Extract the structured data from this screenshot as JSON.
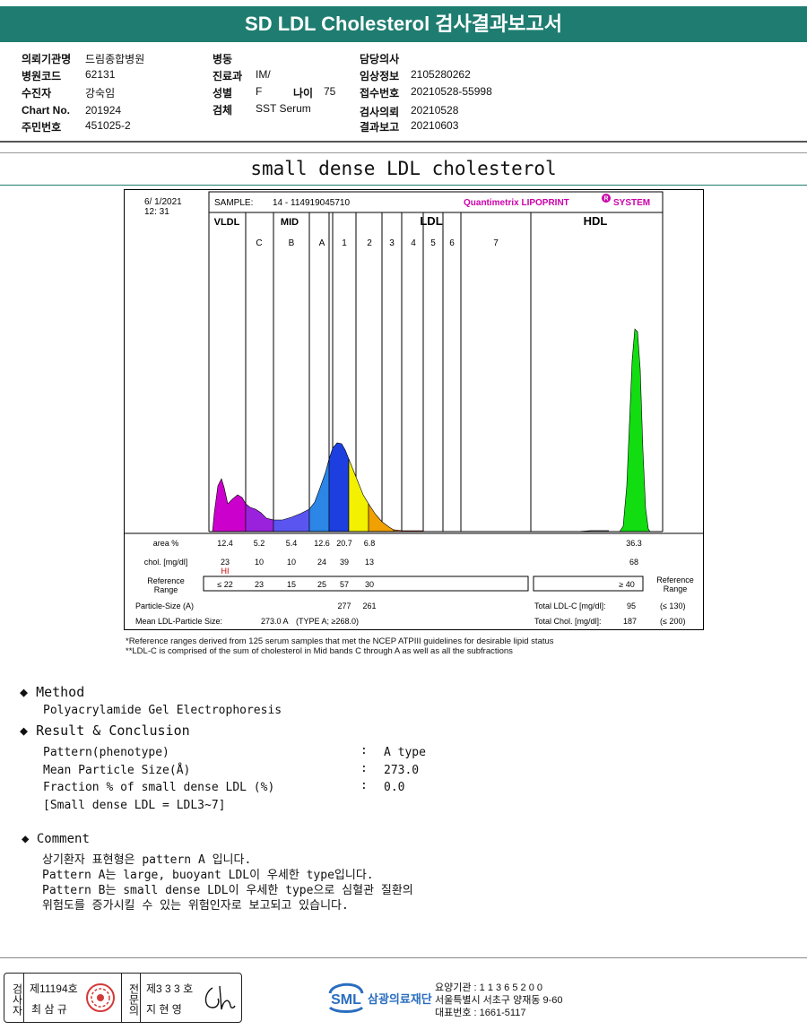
{
  "report_title": "SD LDL Cholesterol 검사결과보고서",
  "header": {
    "col1": [
      {
        "label": "의뢰기관명",
        "value": "드림종합병원"
      },
      {
        "label": "병원코드",
        "value": "62131"
      },
      {
        "label": "수진자",
        "value": "강숙임"
      },
      {
        "label": "Chart No.",
        "value": "201924"
      },
      {
        "label": "주민번호",
        "value": "451025-2"
      }
    ],
    "col2": [
      {
        "label": "병동",
        "value": ""
      },
      {
        "label": "진료과",
        "value": "IM/"
      },
      {
        "label": "성별",
        "value": "F"
      },
      {
        "label": "검체",
        "value": "SST Serum"
      }
    ],
    "age_label": "나이",
    "age_value": "75",
    "col3": [
      {
        "label": "담당의사",
        "value": ""
      },
      {
        "label": "임상정보",
        "value": "2105280262"
      },
      {
        "label": "접수번호",
        "value": "20210528-55998"
      },
      {
        "label": "검사의뢰",
        "value": "20210528"
      },
      {
        "label": "결과보고",
        "value": "20210603"
      }
    ]
  },
  "subtitle": "small dense LDL cholesterol",
  "lipoprint": {
    "date": "6/ 1/2021",
    "time": "12: 31",
    "sample_label": "SAMPLE:",
    "sample_value": "14 - 114919045710",
    "brand": "Quantimetrix LIPOPRINT",
    "brand_suffix": "SYSTEM",
    "brand_mark": "R",
    "groups": {
      "vldl": "VLDL",
      "mid": "MID",
      "ldl": "LDL",
      "hdl": "HDL"
    },
    "bands": [
      "C",
      "B",
      "A",
      "1",
      "2",
      "3",
      "4",
      "5",
      "6",
      "7"
    ],
    "row_labels": {
      "area": "area %",
      "chol": "chol. [mg/dl]",
      "ref1": "Reference",
      "ref2": "Range",
      "particle": "Particle-Size (A)",
      "mean": "Mean LDL-Particle Size:"
    },
    "area_values": [
      "12.4",
      "5.2",
      "5.4",
      "12.6",
      "20.7",
      "6.8"
    ],
    "area_hdl": "36.3",
    "chol_values": [
      "23",
      "10",
      "10",
      "24",
      "39",
      "13"
    ],
    "chol_hdl": "68",
    "chol_flag": "HI",
    "ref_values": [
      "≤ 22",
      "23",
      "15",
      "25",
      "57",
      "30"
    ],
    "ref_hdl": "≥  40",
    "ref_right_1": "Reference",
    "ref_right_2": "Range",
    "particle_values": [
      "277",
      "261"
    ],
    "mean_value": "273.0  A",
    "mean_type": "(TYPE A; ≥268.0)",
    "total_ldl_label": "Total LDL-C [mg/dl]:",
    "total_ldl_value": "95",
    "total_ldl_ref": "(≤ 130)",
    "total_chol_label": "Total Chol. [mg/dl]:",
    "total_chol_value": "187",
    "total_chol_ref": "(≤ 200)",
    "footnote1": "*Reference ranges derived from 125 serum samples that met the NCEP ATPIII guidelines for desirable lipid status",
    "footnote2": "**LDL-C is comprised of the sum of cholesterol in Mid bands C through A as well as all the subfractions",
    "colors": {
      "vldl": "#cc00cc",
      "c": "#9a22dd",
      "b": "#5a55f0",
      "a": "#2b86e6",
      "ldl1": "#1d3fe0",
      "ldl2": "#f3f000",
      "ldl3": "#f0a000",
      "ldl4": "#e56a10",
      "ldl5": "#d82d18",
      "hdl": "#11dd11"
    }
  },
  "method": {
    "heading": "Method",
    "text": "Polyacrylamide Gel Electrophoresis"
  },
  "result": {
    "heading": "Result & Conclusion",
    "rows": [
      {
        "label": "Pattern(phenotype)",
        "value": "A type"
      },
      {
        "label": "Mean Particle Size(Å)",
        "value": "273.0"
      },
      {
        "label": "Fraction % of small dense LDL (%)",
        "value": "0.0"
      }
    ],
    "note": "[Small dense LDL = LDL3~7]",
    "colon": ":"
  },
  "comment": {
    "heading": "Comment",
    "lines": [
      "상기환자 표현형은 pattern A 입니다.",
      "Pattern A는 large, buoyant LDL이 우세한 type입니다.",
      "Pattern B는 small dense LDL이 우세한 type으로 심혈관 질환의",
      "위험도를 증가시킬 수 있는 위험인자로 보고되고 있습니다."
    ]
  },
  "footer": {
    "examiner_label": "검사자",
    "examiner_no": "제11194호",
    "examiner_name": "최 삼 규",
    "specialist_label": "전문의",
    "specialist_no": "제3 3 3 호",
    "specialist_name": "지 현 영",
    "logo_text": "SML",
    "org_name": "삼광의료재단",
    "info1": "요양기관 : 1 1 3 6 5 2 0 0",
    "info2": "서울특별시 서초구 양재동 9-60",
    "info3": "대표번호 : 1661-5117"
  }
}
